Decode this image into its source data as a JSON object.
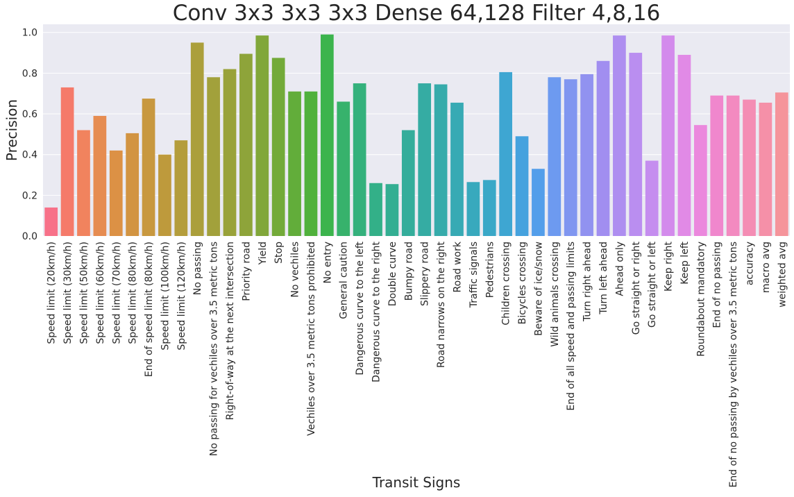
{
  "chart_data": {
    "type": "bar",
    "title": "Conv 3x3 3x3 3x3 Dense 64,128 Filter 4,8,16",
    "xlabel": "Transit Signs",
    "ylabel": "Precision",
    "ylim": [
      0,
      1.04
    ],
    "yticks": [
      "0.0",
      "0.2",
      "0.4",
      "0.6",
      "0.8",
      "1.0"
    ],
    "grid": true,
    "legend": "none",
    "background_color": "#eaeaf2",
    "categories": [
      "Speed limit (20km/h)",
      "Speed limit (30km/h)",
      "Speed limit (50km/h)",
      "Speed limit (60km/h)",
      "Speed limit (70km/h)",
      "Speed limit (80km/h)",
      "End of speed limit (80km/h)",
      "Speed limit (100km/h)",
      "Speed limit (120km/h)",
      "No passing",
      "No passing for vechiles over 3.5 metric tons",
      "Right-of-way at the next intersection",
      "Priority road",
      "Yield",
      "Stop",
      "No vechiles",
      "Vechiles over 3.5 metric tons prohibited",
      "No entry",
      "General caution",
      "Dangerous curve to the left",
      "Dangerous curve to the right",
      "Double curve",
      "Bumpy road",
      "Slippery road",
      "Road narrows on the right",
      "Road work",
      "Traffic signals",
      "Pedestrians",
      "Children crossing",
      "Bicycles crossing",
      "Beware of ice/snow",
      "Wild animals crossing",
      "End of all speed and passing limits",
      "Turn right ahead",
      "Turn left ahead",
      "Ahead only",
      "Go straight or right",
      "Go straight or left",
      "Keep right",
      "Keep left",
      "Roundabout mandatory",
      "End of no passing",
      "End of no passing by vechiles over 3.5 metric tons",
      "accuracy",
      "macro avg",
      "weighted avg"
    ],
    "values": [
      0.14,
      0.73,
      0.52,
      0.59,
      0.42,
      0.505,
      0.675,
      0.4,
      0.47,
      0.95,
      0.78,
      0.82,
      0.895,
      0.985,
      0.875,
      0.71,
      0.71,
      0.99,
      0.66,
      0.75,
      0.26,
      0.255,
      0.52,
      0.75,
      0.745,
      0.655,
      0.265,
      0.275,
      0.805,
      0.49,
      0.33,
      0.78,
      0.77,
      0.795,
      0.86,
      0.985,
      0.9,
      0.37,
      0.985,
      0.89,
      0.545,
      0.69,
      0.69,
      0.67,
      0.655,
      0.705
    ],
    "colors": [
      "#f77189",
      "#f57a6a",
      "#f1835e",
      "#e68c51",
      "#dc9145",
      "#d29442",
      "#c8983f",
      "#be9a3c",
      "#b49d3c",
      "#ab9f3b",
      "#a2a13b",
      "#99a23a",
      "#8ea43a",
      "#81a73a",
      "#73aa39",
      "#62ad3a",
      "#50b13c",
      "#3cb44d",
      "#37b26c",
      "#34b17c",
      "#33b088",
      "#33ae92",
      "#34ad9b",
      "#35aca3",
      "#36abab",
      "#37aab4",
      "#38a9bd",
      "#3aa8c7",
      "#3ea6d2",
      "#45a2de",
      "#539eea",
      "#6d9af0",
      "#8096f0",
      "#9192f0",
      "#a18ef0",
      "#ae8ef0",
      "#ba8ef0",
      "#c58def",
      "#d38bec",
      "#e18ae6",
      "#eb88dd",
      "#f087cd",
      "#f38ac0",
      "#f48db4",
      "#f590a8",
      "#f5949b"
    ]
  }
}
